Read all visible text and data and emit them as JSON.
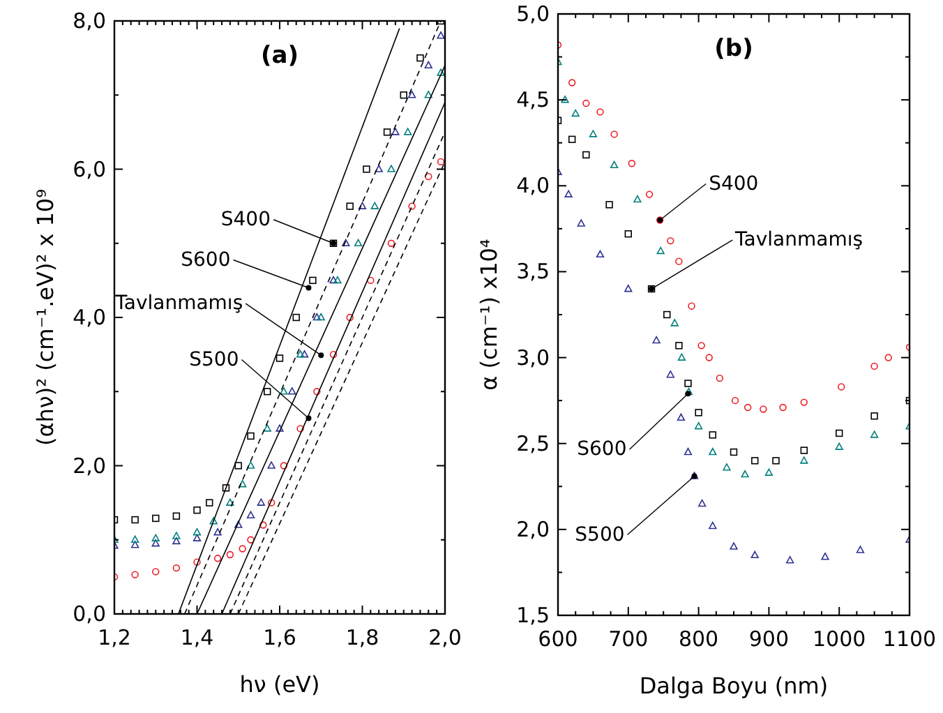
{
  "chart_data": [
    {
      "type": "scatter",
      "title": "(a)",
      "xlabel": "hν (eV)",
      "ylabel": "(αhν)² (cm⁻¹.eV)² x 10⁹",
      "xlim": [
        1.2,
        2.0
      ],
      "ylim": [
        0,
        8
      ],
      "xticks": [
        {
          "value": 1.2,
          "label": "1,2"
        },
        {
          "value": 1.22,
          "label": null
        },
        {
          "value": 1.24,
          "label": null
        },
        {
          "value": 1.26,
          "label": null
        },
        {
          "value": 1.28,
          "label": null
        },
        {
          "value": 1.3,
          "label": null
        },
        {
          "value": 1.32,
          "label": null
        },
        {
          "value": 1.34,
          "label": null
        },
        {
          "value": 1.36,
          "label": null
        },
        {
          "value": 1.38,
          "label": null
        },
        {
          "value": 1.4,
          "label": "1,4"
        },
        {
          "value": 1.42,
          "label": null
        },
        {
          "value": 1.44,
          "label": null
        },
        {
          "value": 1.46,
          "label": null
        },
        {
          "value": 1.48,
          "label": null
        },
        {
          "value": 1.5,
          "label": null
        },
        {
          "value": 1.52,
          "label": null
        },
        {
          "value": 1.54,
          "label": null
        },
        {
          "value": 1.56,
          "label": null
        },
        {
          "value": 1.58,
          "label": null
        },
        {
          "value": 1.6,
          "label": "1,6"
        },
        {
          "value": 1.62,
          "label": null
        },
        {
          "value": 1.64,
          "label": null
        },
        {
          "value": 1.66,
          "label": null
        },
        {
          "value": 1.68,
          "label": null
        },
        {
          "value": 1.7,
          "label": null
        },
        {
          "value": 1.72,
          "label": null
        },
        {
          "value": 1.74,
          "label": null
        },
        {
          "value": 1.76,
          "label": null
        },
        {
          "value": 1.78,
          "label": null
        },
        {
          "value": 1.8,
          "label": "1,8"
        },
        {
          "value": 1.82,
          "label": null
        },
        {
          "value": 1.84,
          "label": null
        },
        {
          "value": 1.86,
          "label": null
        },
        {
          "value": 1.88,
          "label": null
        },
        {
          "value": 1.9,
          "label": null
        },
        {
          "value": 1.92,
          "label": null
        },
        {
          "value": 1.94,
          "label": null
        },
        {
          "value": 1.96,
          "label": null
        },
        {
          "value": 1.98,
          "label": null
        },
        {
          "value": 2.0,
          "label": "2,0"
        }
      ],
      "yticks": [
        {
          "value": 0,
          "label": "0,0"
        },
        {
          "value": 1,
          "label": null
        },
        {
          "value": 2,
          "label": "2,0"
        },
        {
          "value": 3,
          "label": null
        },
        {
          "value": 4,
          "label": "4,0"
        },
        {
          "value": 5,
          "label": null
        },
        {
          "value": 6,
          "label": "6,0"
        },
        {
          "value": 7,
          "label": null
        },
        {
          "value": 8,
          "label": "8,0"
        }
      ],
      "grid": false,
      "series": [
        {
          "color": "#000000",
          "marker": "square",
          "x": [
            1.2,
            1.25,
            1.3,
            1.35,
            1.4,
            1.43,
            1.47,
            1.5,
            1.53,
            1.57,
            1.6,
            1.64,
            1.68,
            1.73,
            1.77,
            1.81,
            1.86,
            1.9,
            1.94,
            1.99
          ],
          "values": [
            1.27,
            1.27,
            1.29,
            1.32,
            1.4,
            1.5,
            1.7,
            2.0,
            2.4,
            3.0,
            3.45,
            4.0,
            4.5,
            5.0,
            5.5,
            6.0,
            6.5,
            7.0,
            7.5,
            8.0
          ]
        },
        {
          "color": "#2e3192",
          "marker": "triangle",
          "x": [
            1.2,
            1.25,
            1.3,
            1.35,
            1.4,
            1.45,
            1.5,
            1.53,
            1.555,
            1.58,
            1.6,
            1.63,
            1.66,
            1.69,
            1.73,
            1.76,
            1.8,
            1.84,
            1.88,
            1.92,
            1.96,
            1.99
          ],
          "values": [
            0.92,
            0.93,
            0.95,
            0.98,
            1.02,
            1.1,
            1.2,
            1.33,
            1.5,
            2.0,
            2.5,
            3.0,
            3.5,
            4.0,
            4.5,
            5.0,
            5.5,
            6.0,
            6.5,
            7.0,
            7.4,
            7.8
          ]
        },
        {
          "color": "#00807f",
          "marker": "triangle",
          "x": [
            1.2,
            1.25,
            1.3,
            1.35,
            1.4,
            1.44,
            1.48,
            1.51,
            1.53,
            1.57,
            1.61,
            1.65,
            1.7,
            1.74,
            1.79,
            1.83,
            1.87,
            1.91,
            1.96,
            1.99
          ],
          "values": [
            1.0,
            1.0,
            1.02,
            1.05,
            1.1,
            1.25,
            1.5,
            1.75,
            2.0,
            2.5,
            3.0,
            3.5,
            4.0,
            4.5,
            5.0,
            5.5,
            6.0,
            6.5,
            7.0,
            7.3
          ]
        },
        {
          "color": "#ed1c24",
          "marker": "circle",
          "x": [
            1.2,
            1.25,
            1.3,
            1.35,
            1.4,
            1.45,
            1.48,
            1.51,
            1.53,
            1.56,
            1.58,
            1.61,
            1.65,
            1.69,
            1.73,
            1.77,
            1.82,
            1.87,
            1.92,
            1.96,
            1.99
          ],
          "values": [
            0.5,
            0.53,
            0.57,
            0.62,
            0.7,
            0.75,
            0.8,
            0.88,
            1.0,
            1.2,
            1.5,
            2.0,
            2.5,
            3.0,
            3.5,
            4.0,
            4.5,
            5.0,
            5.5,
            5.9,
            6.1
          ]
        },
        {
          "type": "line",
          "color": "#000000",
          "marker": "none",
          "line_style": "solid",
          "x": [
            1.355,
            1.89
          ],
          "values": [
            0,
            7.9
          ]
        },
        {
          "type": "line",
          "color": "#000000",
          "marker": "none",
          "line_style": "dashed",
          "x": [
            1.37,
            1.99
          ],
          "values": [
            0,
            8.0
          ]
        },
        {
          "type": "line",
          "color": "#000000",
          "marker": "none",
          "line_style": "solid",
          "x": [
            1.4,
            2.0
          ],
          "values": [
            0,
            7.4
          ]
        },
        {
          "type": "line",
          "color": "#000000",
          "marker": "none",
          "line_style": "solid",
          "x": [
            1.46,
            2.0
          ],
          "values": [
            0,
            6.9
          ]
        },
        {
          "type": "line",
          "color": "#000000",
          "marker": "none",
          "line_style": "dashed",
          "x": [
            1.48,
            2.0
          ],
          "values": [
            0,
            6.5
          ]
        },
        {
          "type": "line",
          "color": "#000000",
          "marker": "none",
          "line_style": "dashed",
          "x": [
            1.5,
            2.0
          ],
          "values": [
            0,
            6.1
          ]
        }
      ],
      "annotations": [
        {
          "text": "S400",
          "x": 1.73,
          "y": 5.0
        },
        {
          "text": "S600",
          "x": 1.67,
          "y": 4.4
        },
        {
          "text": "Tavlanmamış",
          "x": 1.7,
          "y": 3.49
        },
        {
          "text": "S500",
          "x": 1.67,
          "y": 2.64
        }
      ]
    },
    {
      "type": "scatter",
      "title": "(b)",
      "xlabel": "Dalga Boyu (nm)",
      "ylabel": "α (cm⁻¹) x10⁴",
      "xlim": [
        600,
        1100
      ],
      "ylim": [
        1.5,
        5.0
      ],
      "xticks": [
        600,
        {
          "value": 625,
          "label": null
        },
        {
          "value": 650,
          "label": null
        },
        {
          "value": 675,
          "label": null
        },
        700,
        {
          "value": 725,
          "label": null
        },
        {
          "value": 750,
          "label": null
        },
        {
          "value": 775,
          "label": null
        },
        800,
        {
          "value": 825,
          "label": null
        },
        {
          "value": 850,
          "label": null
        },
        {
          "value": 875,
          "label": null
        },
        900,
        {
          "value": 925,
          "label": null
        },
        {
          "value": 950,
          "label": null
        },
        {
          "value": 975,
          "label": null
        },
        1000,
        {
          "value": 1025,
          "label": null
        },
        {
          "value": 1050,
          "label": null
        },
        {
          "value": 1075,
          "label": null
        },
        1100
      ],
      "yticks": [
        {
          "value": 1.5,
          "label": "1,5"
        },
        {
          "value": 1.75,
          "label": null
        },
        {
          "value": 2.0,
          "label": "2,0"
        },
        {
          "value": 2.25,
          "label": null
        },
        {
          "value": 2.5,
          "label": "2,5"
        },
        {
          "value": 2.75,
          "label": null
        },
        {
          "value": 3.0,
          "label": "3,0"
        },
        {
          "value": 3.25,
          "label": null
        },
        {
          "value": 3.5,
          "label": "3,5"
        },
        {
          "value": 3.75,
          "label": null
        },
        {
          "value": 4.0,
          "label": "4,0"
        },
        {
          "value": 4.25,
          "label": null
        },
        {
          "value": 4.5,
          "label": "4,5"
        },
        {
          "value": 4.75,
          "label": null
        },
        {
          "value": 5.0,
          "label": "5,0"
        }
      ],
      "grid": false,
      "series": [
        {
          "color": "#ed1c24",
          "marker": "circle",
          "x": [
            600,
            620,
            640,
            660,
            680,
            705,
            730,
            745,
            760,
            772,
            790,
            804,
            815,
            830,
            852,
            870,
            892,
            920,
            950,
            1003,
            1050,
            1070,
            1100
          ],
          "values": [
            4.82,
            4.6,
            4.48,
            4.43,
            4.3,
            4.13,
            3.95,
            3.8,
            3.68,
            3.56,
            3.3,
            3.07,
            3.0,
            2.88,
            2.75,
            2.71,
            2.7,
            2.71,
            2.74,
            2.83,
            2.95,
            3.0,
            3.06
          ]
        },
        {
          "color": "#000000",
          "marker": "square",
          "x": [
            600,
            620,
            640,
            673,
            700,
            733,
            755,
            772,
            785,
            800,
            820,
            850,
            880,
            910,
            950,
            1000,
            1050,
            1100
          ],
          "values": [
            4.38,
            4.27,
            4.18,
            3.89,
            3.72,
            3.4,
            3.25,
            3.07,
            2.85,
            2.68,
            2.55,
            2.45,
            2.4,
            2.4,
            2.46,
            2.56,
            2.66,
            2.75
          ]
        },
        {
          "color": "#00807f",
          "marker": "triangle",
          "x": [
            600,
            610,
            625,
            650,
            680,
            713,
            746,
            766,
            776,
            786,
            800,
            820,
            840,
            866,
            900,
            950,
            1000,
            1050,
            1100
          ],
          "values": [
            4.72,
            4.5,
            4.42,
            4.3,
            4.12,
            3.92,
            3.62,
            3.2,
            3.0,
            2.8,
            2.6,
            2.45,
            2.36,
            2.32,
            2.33,
            2.4,
            2.48,
            2.55,
            2.6
          ]
        },
        {
          "color": "#2e3192",
          "marker": "triangle",
          "x": [
            600,
            615,
            633,
            660,
            700,
            740,
            760,
            775,
            785,
            794,
            805,
            820,
            850,
            880,
            930,
            980,
            1030,
            1100
          ],
          "values": [
            4.08,
            3.95,
            3.78,
            3.6,
            3.4,
            3.1,
            2.9,
            2.65,
            2.45,
            2.31,
            2.15,
            2.02,
            1.9,
            1.85,
            1.82,
            1.84,
            1.88,
            1.94
          ]
        }
      ],
      "annotations": [
        {
          "text": "S400",
          "x": 745,
          "y": 3.8
        },
        {
          "text": "Tavlanmamış",
          "x": 733,
          "y": 3.4
        },
        {
          "text": "S600",
          "x": 785,
          "y": 2.79
        },
        {
          "text": "S500",
          "x": 794,
          "y": 2.31
        }
      ]
    }
  ]
}
